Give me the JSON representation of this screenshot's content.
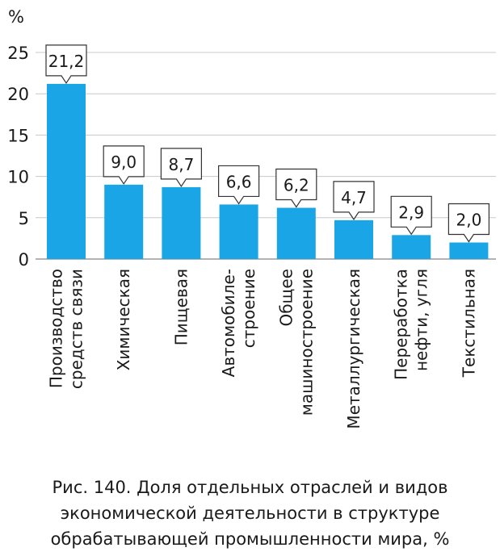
{
  "chart_data": {
    "type": "bar",
    "ylabel": "%",
    "ylim": [
      0,
      25
    ],
    "yticks": [
      0,
      5,
      10,
      15,
      20,
      25
    ],
    "grid": true,
    "bar_color": "#1aa6e6",
    "categories": [
      [
        "Производство",
        "средств связи"
      ],
      [
        "Химическая"
      ],
      [
        "Пищевая"
      ],
      [
        "Автомобиле-",
        "строение"
      ],
      [
        "Общее",
        "машиностроение"
      ],
      [
        "Металлургическая"
      ],
      [
        "Переработка",
        "нефти, угля"
      ],
      [
        "Текстильная"
      ]
    ],
    "values": [
      21.2,
      9.0,
      8.7,
      6.6,
      6.2,
      4.7,
      2.9,
      2.0
    ],
    "data_labels": [
      "21,2",
      "9,0",
      "8,7",
      "6,6",
      "6,2",
      "4,7",
      "2,9",
      "2,0"
    ]
  },
  "caption": {
    "line1": "Рис. 140. Доля отдельных отраслей и видов",
    "line2": "экономической деятельности в структуре",
    "line3": "обрабатывающей промышленности мира, %"
  }
}
